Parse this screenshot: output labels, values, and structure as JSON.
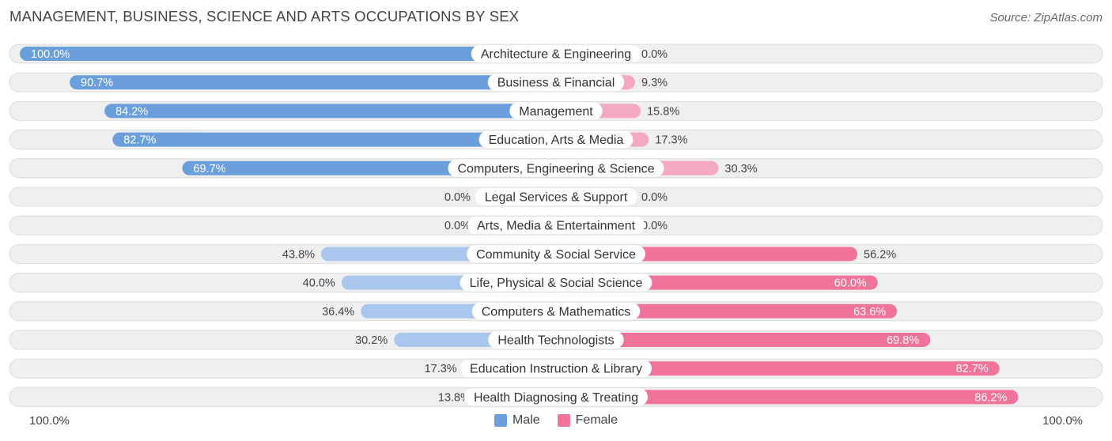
{
  "header": {
    "title": "MANAGEMENT, BUSINESS, SCIENCE AND ARTS OCCUPATIONS BY SEX",
    "source": "Source: ZipAtlas.com"
  },
  "axis": {
    "left_label": "100.0%",
    "right_label": "100.0%"
  },
  "legend": [
    {
      "name": "Male",
      "color": "#6b9fdc"
    },
    {
      "name": "Female",
      "color": "#f07399"
    }
  ],
  "colors": {
    "male_strong": "#6b9fdc",
    "male_light": "#a9c6ec",
    "female_strong": "#f07399",
    "female_light": "#f5a8c1",
    "row_bg": "#efefef",
    "row_border": "#dcdcdc"
  },
  "chart_data": {
    "type": "bar",
    "orientation": "horizontal-diverging",
    "categories": [
      "Architecture & Engineering",
      "Business & Financial",
      "Management",
      "Education, Arts & Media",
      "Computers, Engineering & Science",
      "Legal Services & Support",
      "Arts, Media & Entertainment",
      "Community & Social Service",
      "Life, Physical & Social Science",
      "Computers & Mathematics",
      "Health Technologists",
      "Education Instruction & Library",
      "Health Diagnosing & Treating"
    ],
    "series": [
      {
        "name": "Male",
        "values": [
          100.0,
          90.7,
          84.2,
          82.7,
          69.7,
          0.0,
          0.0,
          43.8,
          40.0,
          36.4,
          30.2,
          17.3,
          13.8
        ],
        "labels": [
          "100.0%",
          "90.7%",
          "84.2%",
          "82.7%",
          "69.7%",
          "0.0%",
          "0.0%",
          "43.8%",
          "40.0%",
          "36.4%",
          "30.2%",
          "17.3%",
          "13.8%"
        ]
      },
      {
        "name": "Female",
        "values": [
          0.0,
          9.3,
          15.8,
          17.3,
          30.3,
          0.0,
          0.0,
          56.2,
          60.0,
          63.6,
          69.8,
          82.7,
          86.2
        ],
        "labels": [
          "0.0%",
          "9.3%",
          "15.8%",
          "17.3%",
          "30.3%",
          "0.0%",
          "0.0%",
          "56.2%",
          "60.0%",
          "63.6%",
          "69.8%",
          "82.7%",
          "86.2%"
        ]
      }
    ],
    "xlim": [
      -100,
      100
    ]
  }
}
